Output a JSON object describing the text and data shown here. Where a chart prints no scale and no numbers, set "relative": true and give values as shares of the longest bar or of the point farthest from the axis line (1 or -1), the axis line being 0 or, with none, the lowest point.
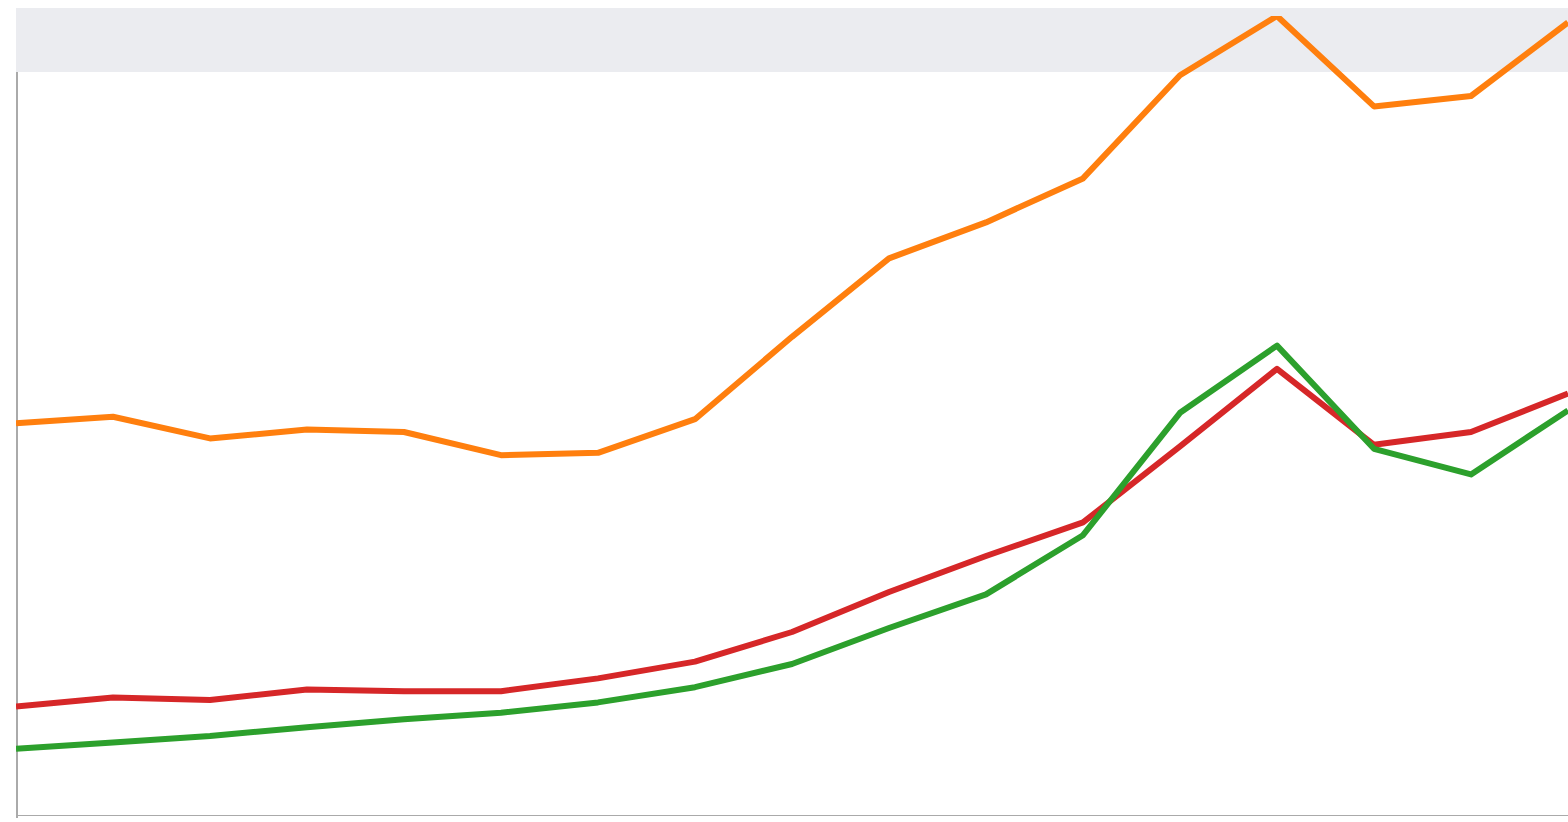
{
  "chart_data": {
    "type": "line",
    "relative": true,
    "categories": [
      null,
      null,
      null,
      null,
      null,
      null,
      null,
      null,
      null,
      null,
      null,
      null,
      null,
      null,
      null,
      null,
      null
    ],
    "marker": "none",
    "grid": false,
    "legend": false,
    "series": [
      {
        "color": "#ff7f0e",
        "values": [
          0.491,
          0.499,
          0.472,
          0.483,
          0.48,
          0.451,
          0.454,
          0.496,
          0.599,
          0.697,
          0.742,
          0.797,
          0.926,
          1.0,
          0.887,
          0.9,
          0.992
        ]
      },
      {
        "color": "#2ca02c",
        "values": [
          0.084,
          0.092,
          0.1,
          0.111,
          0.121,
          0.129,
          0.142,
          0.161,
          0.19,
          0.235,
          0.277,
          0.351,
          0.504,
          0.588,
          0.459,
          0.427,
          0.507
        ]
      },
      {
        "color": "#d62728",
        "values": [
          0.137,
          0.148,
          0.145,
          0.158,
          0.156,
          0.156,
          0.172,
          0.193,
          0.23,
          0.28,
          0.325,
          0.367,
          0.462,
          0.559,
          0.464,
          0.48,
          0.528
        ]
      }
    ]
  }
}
